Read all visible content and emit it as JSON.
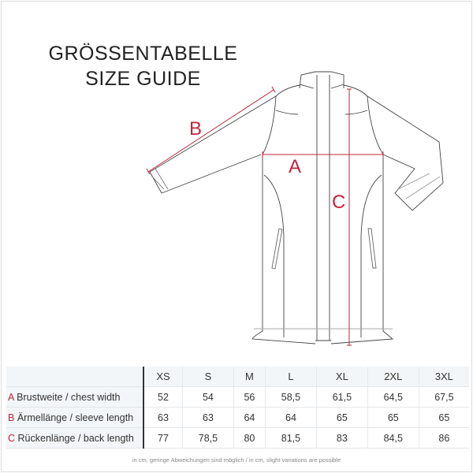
{
  "title": {
    "line1": "GRÖSSENTABELLE",
    "line2": "SIZE GUIDE"
  },
  "diagram": {
    "labels": {
      "a": "A",
      "b": "B",
      "c": "C"
    },
    "accent": "#c0243b",
    "line_color": "#444444"
  },
  "table": {
    "sizes": [
      "XS",
      "S",
      "M",
      "L",
      "XL",
      "2XL",
      "3XL"
    ],
    "rows": [
      {
        "letter": "A",
        "label": "Brustweite / chest width",
        "values": [
          "52",
          "54",
          "56",
          "58,5",
          "61,5",
          "64,5",
          "67,5"
        ]
      },
      {
        "letter": "B",
        "label": "Ärmellänge / sleeve length",
        "values": [
          "63",
          "63",
          "64",
          "64",
          "65",
          "65",
          "65"
        ]
      },
      {
        "letter": "C",
        "label": "Rückenlänge / back length",
        "values": [
          "77",
          "78,5",
          "80",
          "81,5",
          "83",
          "84,5",
          "86"
        ]
      }
    ]
  },
  "footnote": "in cm, geringe Abweichungen sind möglich / in cm, slight variations are possible"
}
